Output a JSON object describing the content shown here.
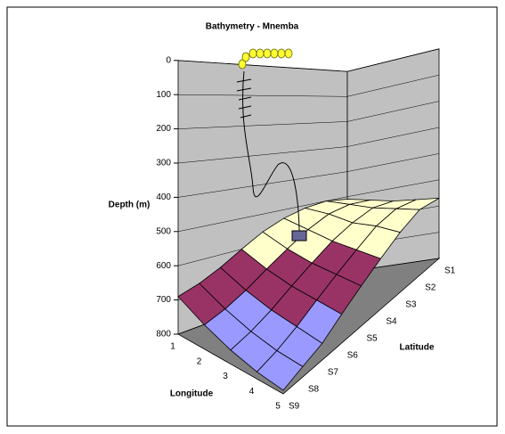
{
  "chart_data": {
    "type": "surface",
    "title": "Bathymetry - Mnemba",
    "y_label": "Depth (m)",
    "x_label": "Longitude",
    "z_label": "Latitude",
    "longitude": [
      "1",
      "2",
      "3",
      "4",
      "5"
    ],
    "latitude": [
      "S1",
      "S2",
      "S3",
      "S4",
      "S5",
      "S6",
      "S7",
      "S8",
      "S9"
    ],
    "values": [
      [
        510,
        500,
        510,
        530,
        560,
        600,
        640,
        670,
        690
      ],
      [
        530,
        520,
        530,
        560,
        600,
        640,
        680,
        710,
        730
      ],
      [
        550,
        540,
        560,
        590,
        630,
        670,
        710,
        740,
        760
      ],
      [
        560,
        550,
        570,
        610,
        650,
        690,
        730,
        760,
        780
      ],
      [
        570,
        560,
        590,
        630,
        670,
        710,
        750,
        770,
        790
      ]
    ],
    "ylim": [
      0,
      800
    ],
    "yticks": [
      0,
      100,
      200,
      300,
      400,
      500,
      600,
      700,
      800
    ],
    "reversed": true,
    "colors": [
      "#9999ff",
      "#993366",
      "#ffffcc",
      "#ccffff"
    ],
    "grid": true
  }
}
